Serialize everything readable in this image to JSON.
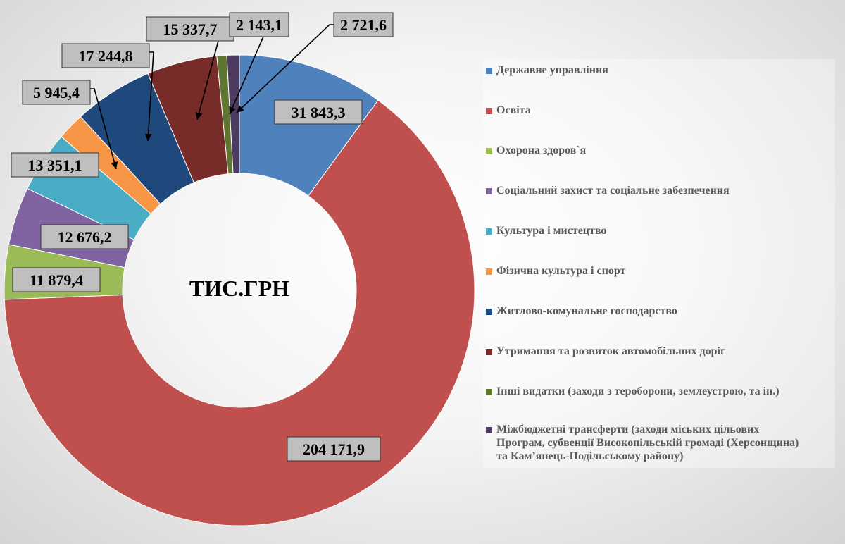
{
  "chart_data": {
    "type": "donut",
    "center_label": "ТИС.ГРН",
    "slices": [
      {
        "name": "Державне управління",
        "value": 31843.3,
        "label": "31 843,3",
        "color": "#4f81bd"
      },
      {
        "name": "Освіта",
        "value": 204171.9,
        "label": "204 171,9",
        "color": "#c0504d"
      },
      {
        "name": "Охорона здоров`я",
        "value": 11879.4,
        "label": "11 879,4",
        "color": "#9bbb59"
      },
      {
        "name": "Соціальний захист та соціальне забезпечення",
        "value": 12676.2,
        "label": "12 676,2",
        "color": "#8064a2"
      },
      {
        "name": "Культура і мистецтво",
        "value": 13351.1,
        "label": "13 351,1",
        "color": "#4bacc6"
      },
      {
        "name": "Фізична культура і спорт",
        "value": 5945.4,
        "label": "5 945,4",
        "color": "#f79646"
      },
      {
        "name": "Житлово-комунальне господарство",
        "value": 17244.8,
        "label": "17 244,8",
        "color": "#1f497d"
      },
      {
        "name": "Утримання та розвиток автомобільних доріг",
        "value": 15337.7,
        "label": "15 337,7",
        "color": "#772c2a"
      },
      {
        "name": "Інші видатки (заходи з тероборони,  землеустрою, та ін.)",
        "value": 2143.1,
        "label": "2 143,1",
        "color": "#5f7530"
      },
      {
        "name": "Міжбюджетні трансферти (заходи міських цільових Програм, субвенції Високопільській громаді (Херсонщина) та Кам’янець-Подільському району)",
        "value": 2721.6,
        "label": "2 721,6",
        "color": "#4d3b62"
      }
    ],
    "legend_position": "right"
  }
}
